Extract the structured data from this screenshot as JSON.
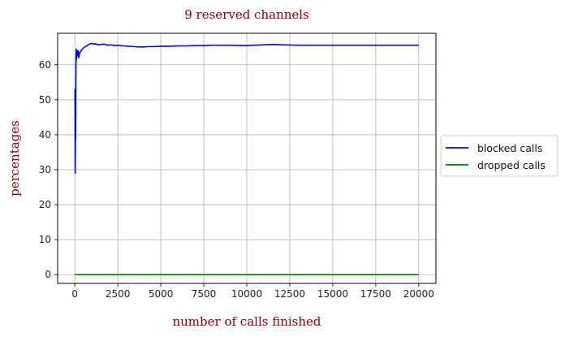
{
  "chart_data": {
    "type": "line",
    "title": "9 reserved channels",
    "xlabel": "number of calls finished",
    "ylabel": "percentages",
    "xlim": [
      -1000,
      21000
    ],
    "ylim": [
      -2.5,
      69
    ],
    "xticks": [
      0,
      2500,
      5000,
      7500,
      10000,
      12500,
      15000,
      17500,
      20000
    ],
    "yticks": [
      0,
      10,
      20,
      30,
      40,
      50,
      60
    ],
    "grid": true,
    "legend_position": "right-outside",
    "series": [
      {
        "name": "blocked calls",
        "color": "#0000ff",
        "x": [
          1,
          10,
          20,
          30,
          40,
          50,
          60,
          70,
          80,
          90,
          100,
          120,
          140,
          160,
          180,
          200,
          230,
          260,
          300,
          350,
          400,
          450,
          500,
          600,
          700,
          800,
          900,
          1000,
          1100,
          1200,
          1350,
          1500,
          1700,
          1900,
          2100,
          2300,
          2500,
          2800,
          3100,
          3400,
          3700,
          4000,
          4300,
          4600,
          5000,
          5500,
          6000,
          6500,
          7000,
          7500,
          8000,
          9000,
          10000,
          11000,
          11500,
          12000,
          13000,
          14000,
          15000,
          16000,
          17000,
          18000,
          19000,
          20000
        ],
        "y": [
          50,
          53,
          29,
          35,
          43,
          39,
          55,
          62,
          64.5,
          61.5,
          63.5,
          63,
          64,
          62.5,
          63.5,
          64,
          62,
          63,
          63.5,
          63.8,
          64.3,
          64.5,
          64.8,
          65.2,
          65.4,
          65.8,
          66,
          66.1,
          65.9,
          66,
          65.7,
          65.8,
          65.9,
          65.6,
          65.7,
          65.5,
          65.6,
          65.4,
          65.3,
          65.2,
          65.1,
          65.1,
          65.2,
          65.2,
          65.3,
          65.3,
          65.4,
          65.4,
          65.5,
          65.5,
          65.6,
          65.6,
          65.5,
          65.7,
          65.8,
          65.7,
          65.6,
          65.6,
          65.6,
          65.6,
          65.6,
          65.6,
          65.6,
          65.6
        ]
      },
      {
        "name": "dropped calls",
        "color": "#008000",
        "x": [
          0,
          20000
        ],
        "y": [
          0,
          0
        ]
      }
    ]
  }
}
